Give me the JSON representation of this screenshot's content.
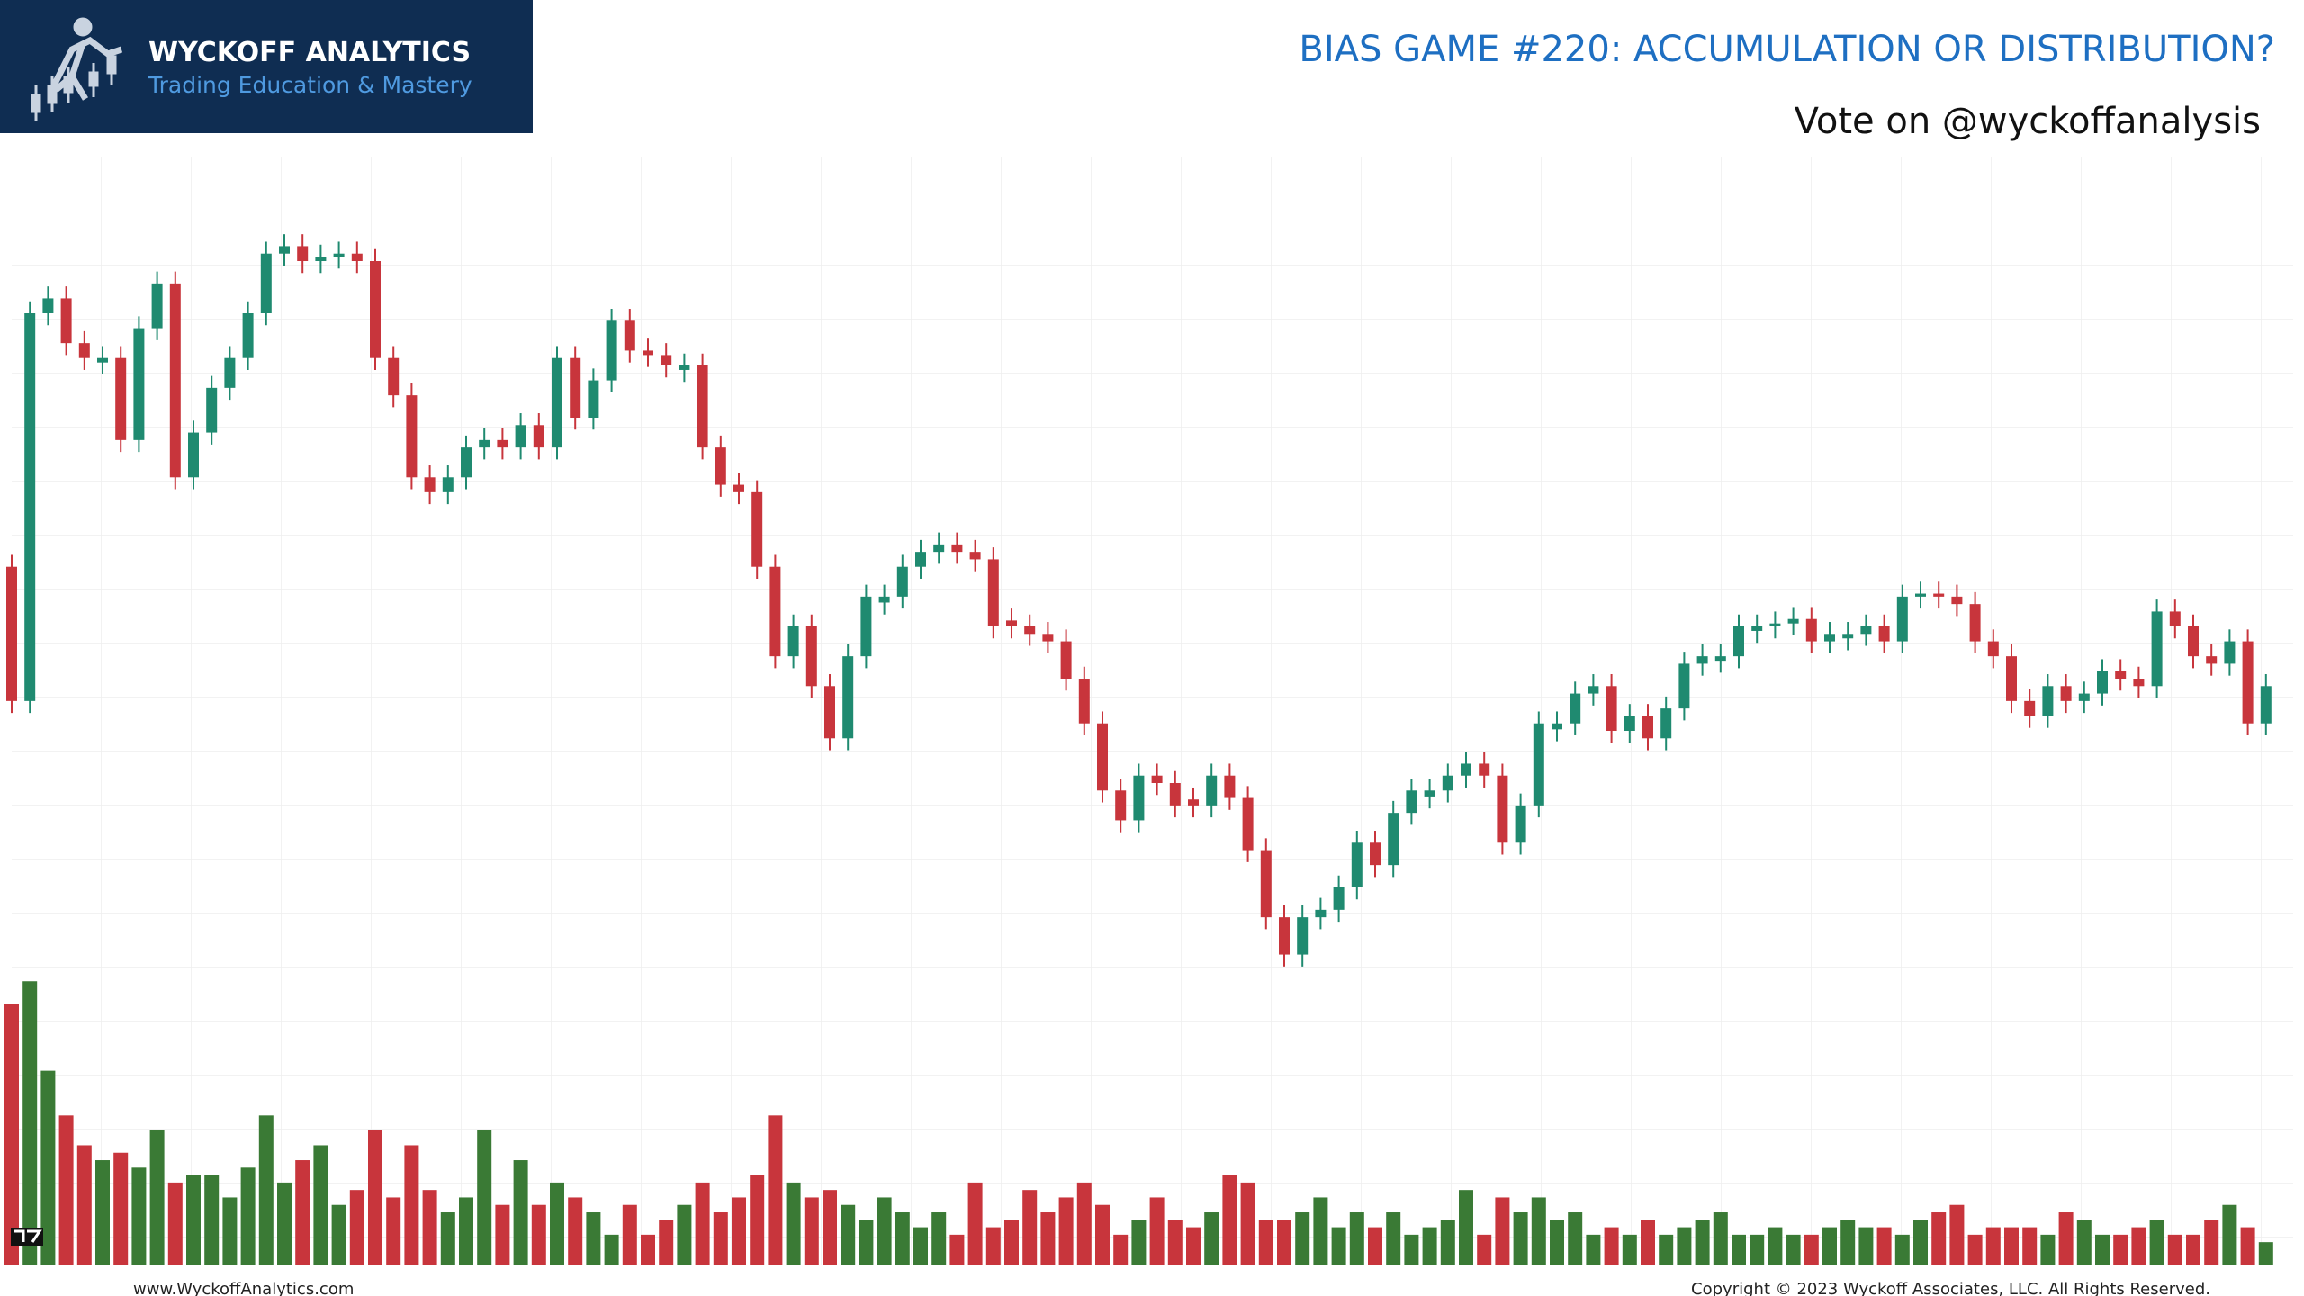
{
  "header": {
    "logo_title": "WYCKOFF ANALYTICS",
    "logo_subtitle": "Trading Education & Mastery",
    "title": "BIAS GAME #220: ACCUMULATION OR DISTRIBUTION?",
    "subtitle": "Vote on @wyckoffanalysis"
  },
  "footer": {
    "left": "www.WyckoffAnalytics.com",
    "right": "Copyright © 2023 Wyckoff Associates, LLC. All Rights Reserved."
  },
  "chart_data": {
    "type": "candlestick",
    "grid": true,
    "up_color": "#1f8a70",
    "down_color": "#c8353c",
    "volume_up_color": "#3a7a35",
    "volume_down_color": "#c8353c",
    "ylim": [
      0,
      595
    ],
    "volume_ylim": [
      0,
      600
    ],
    "open": [
      320,
      230,
      490,
      500,
      470,
      457,
      460,
      405,
      480,
      510,
      380,
      410,
      440,
      460,
      490,
      530,
      535,
      525,
      528,
      530,
      525,
      460,
      435,
      380,
      370,
      380,
      400,
      405,
      400,
      415,
      400,
      460,
      420,
      445,
      485,
      465,
      462,
      452,
      455,
      400,
      375,
      370,
      320,
      260,
      280,
      240,
      205,
      260,
      296,
      300,
      320,
      330,
      335,
      330,
      325,
      284,
      280,
      275,
      270,
      245,
      215,
      170,
      150,
      180,
      175,
      164,
      160,
      180,
      165,
      130,
      85,
      60,
      85,
      90,
      105,
      135,
      120,
      155,
      166,
      170,
      180,
      188,
      180,
      135,
      160,
      211,
      215,
      235,
      240,
      210,
      220,
      205,
      225,
      255,
      257,
      260,
      277,
      280,
      282,
      285,
      270,
      272,
      275,
      280,
      270,
      300,
      302,
      300,
      295,
      270,
      260,
      230,
      220,
      240,
      230,
      235,
      250,
      245,
      240,
      290,
      280,
      260,
      255,
      270,
      215
    ],
    "high": [
      328,
      498,
      508,
      508,
      478,
      468,
      468,
      488,
      518,
      518,
      418,
      448,
      468,
      498,
      538,
      543,
      543,
      536,
      538,
      538,
      533,
      468,
      443,
      388,
      388,
      408,
      413,
      413,
      423,
      423,
      468,
      468,
      453,
      493,
      493,
      473,
      470,
      463,
      463,
      408,
      383,
      378,
      328,
      288,
      288,
      248,
      268,
      308,
      308,
      328,
      338,
      343,
      343,
      338,
      333,
      292,
      288,
      283,
      278,
      253,
      223,
      178,
      188,
      188,
      183,
      172,
      188,
      188,
      173,
      138,
      93,
      93,
      98,
      113,
      143,
      143,
      163,
      178,
      178,
      188,
      196,
      196,
      188,
      168,
      223,
      223,
      243,
      248,
      248,
      228,
      228,
      233,
      263,
      268,
      268,
      288,
      288,
      290,
      293,
      293,
      283,
      283,
      288,
      288,
      308,
      310,
      310,
      308,
      303,
      278,
      268,
      238,
      248,
      248,
      243,
      258,
      258,
      253,
      298,
      298,
      288,
      268,
      278,
      278,
      248
    ],
    "low": [
      222,
      222,
      482,
      462,
      452,
      449,
      397,
      397,
      472,
      372,
      372,
      402,
      432,
      452,
      482,
      522,
      517,
      517,
      520,
      517,
      452,
      427,
      372,
      362,
      362,
      372,
      392,
      392,
      392,
      392,
      392,
      412,
      412,
      437,
      457,
      454,
      447,
      444,
      392,
      367,
      362,
      312,
      252,
      252,
      232,
      197,
      197,
      252,
      288,
      292,
      312,
      322,
      322,
      317,
      272,
      272,
      267,
      262,
      237,
      207,
      162,
      142,
      142,
      167,
      152,
      152,
      152,
      157,
      122,
      77,
      52,
      52,
      77,
      82,
      97,
      112,
      112,
      147,
      158,
      162,
      172,
      172,
      127,
      127,
      152,
      203,
      207,
      227,
      202,
      202,
      197,
      197,
      217,
      247,
      249,
      252,
      269,
      272,
      274,
      262,
      262,
      264,
      267,
      262,
      262,
      292,
      292,
      287,
      262,
      252,
      222,
      212,
      212,
      222,
      222,
      227,
      237,
      232,
      232,
      272,
      252,
      247,
      247,
      207,
      207
    ],
    "close": [
      230,
      490,
      500,
      470,
      460,
      460,
      405,
      480,
      510,
      380,
      410,
      440,
      460,
      490,
      530,
      535,
      525,
      528,
      530,
      525,
      460,
      435,
      380,
      370,
      380,
      400,
      405,
      400,
      415,
      400,
      460,
      420,
      445,
      485,
      465,
      462,
      455,
      455,
      400,
      375,
      370,
      320,
      260,
      280,
      240,
      205,
      260,
      300,
      300,
      320,
      330,
      335,
      330,
      325,
      280,
      280,
      275,
      270,
      245,
      215,
      170,
      150,
      180,
      175,
      160,
      160,
      180,
      165,
      130,
      85,
      60,
      85,
      90,
      105,
      135,
      120,
      155,
      170,
      170,
      180,
      188,
      180,
      135,
      160,
      215,
      215,
      235,
      240,
      210,
      220,
      205,
      225,
      255,
      260,
      260,
      280,
      280,
      282,
      285,
      270,
      275,
      275,
      280,
      270,
      300,
      302,
      300,
      295,
      270,
      260,
      230,
      220,
      240,
      230,
      235,
      250,
      245,
      240,
      290,
      280,
      260,
      255,
      270,
      215,
      240
    ],
    "volume": [
      175,
      190,
      130,
      100,
      80,
      70,
      75,
      65,
      90,
      55,
      60,
      60,
      45,
      65,
      100,
      55,
      70,
      80,
      40,
      50,
      90,
      45,
      80,
      50,
      35,
      45,
      90,
      40,
      70,
      40,
      55,
      45,
      35,
      20,
      40,
      20,
      30,
      40,
      55,
      35,
      45,
      60,
      100,
      55,
      45,
      50,
      40,
      30,
      45,
      35,
      25,
      35,
      20,
      55,
      25,
      30,
      50,
      35,
      45,
      55,
      40,
      20,
      30,
      45,
      30,
      25,
      35,
      60,
      55,
      30,
      30,
      35,
      45,
      25,
      35,
      25,
      35,
      20,
      25,
      30,
      50,
      20,
      45,
      35,
      45,
      30,
      35,
      20,
      25,
      20,
      30,
      20,
      25,
      30,
      35,
      20,
      20,
      25,
      20,
      20,
      25,
      30,
      25,
      25,
      20,
      30,
      35,
      40,
      20,
      25,
      25,
      25,
      20,
      35,
      30,
      20,
      20,
      25,
      30,
      20,
      20,
      30,
      40,
      25,
      15
    ]
  }
}
